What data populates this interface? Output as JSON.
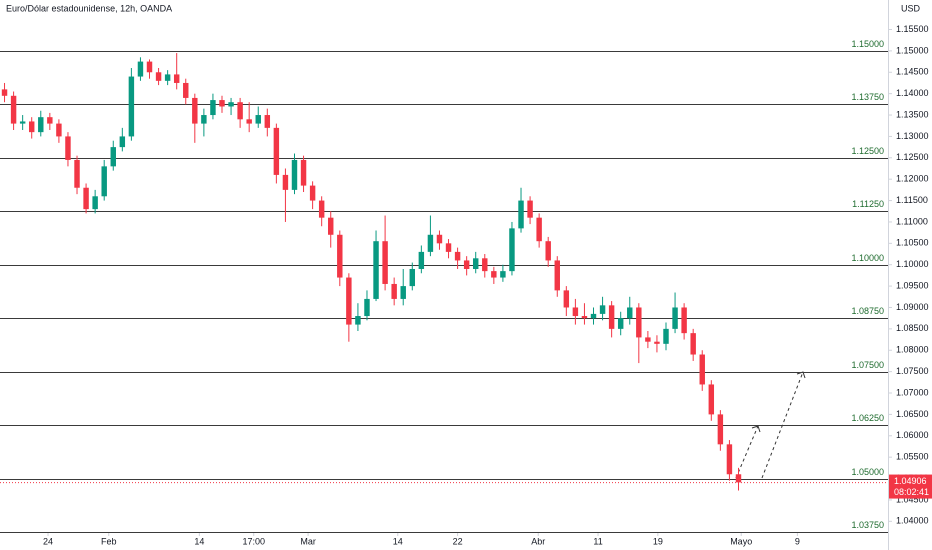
{
  "chart_data": {
    "type": "candlestick",
    "title": "Euro/Dólar estadounidense, 12h, OANDA",
    "currency": "USD",
    "up_color": "#089981",
    "down_color": "#f23645",
    "level_color": "#1e6b2e",
    "ylim": [
      1.0375,
      1.1619
    ],
    "xlim": [
      -0.5,
      97.5
    ],
    "yticks": [
      {
        "value": 1.04,
        "label": "1.04000"
      },
      {
        "value": 1.045,
        "label": "1.04500"
      },
      {
        "value": 1.05,
        "label": "1.05000"
      },
      {
        "value": 1.055,
        "label": "1.05500"
      },
      {
        "value": 1.06,
        "label": "1.06000"
      },
      {
        "value": 1.065,
        "label": "1.06500"
      },
      {
        "value": 1.07,
        "label": "1.07000"
      },
      {
        "value": 1.075,
        "label": "1.07500"
      },
      {
        "value": 1.08,
        "label": "1.08000"
      },
      {
        "value": 1.085,
        "label": "1.08500"
      },
      {
        "value": 1.09,
        "label": "1.09000"
      },
      {
        "value": 1.095,
        "label": "1.09500"
      },
      {
        "value": 1.1,
        "label": "1.10000"
      },
      {
        "value": 1.105,
        "label": "1.10500"
      },
      {
        "value": 1.11,
        "label": "1.11000"
      },
      {
        "value": 1.115,
        "label": "1.11500"
      },
      {
        "value": 1.12,
        "label": "1.12000"
      },
      {
        "value": 1.125,
        "label": "1.12500"
      },
      {
        "value": 1.13,
        "label": "1.13000"
      },
      {
        "value": 1.135,
        "label": "1.13500"
      },
      {
        "value": 1.14,
        "label": "1.14000"
      },
      {
        "value": 1.145,
        "label": "1.14500"
      },
      {
        "value": 1.15,
        "label": "1.15000"
      },
      {
        "value": 1.155,
        "label": "1.15500"
      }
    ],
    "xticks": [
      {
        "value": 4.8,
        "label": "24"
      },
      {
        "value": 11.5,
        "label": "Feb"
      },
      {
        "value": 21.5,
        "label": "14"
      },
      {
        "value": 27.5,
        "label": "17:00"
      },
      {
        "value": 33.5,
        "label": "Mar"
      },
      {
        "value": 43.4,
        "label": "14"
      },
      {
        "value": 50,
        "label": "22"
      },
      {
        "value": 58.9,
        "label": "Abr"
      },
      {
        "value": 65.5,
        "label": "11"
      },
      {
        "value": 72.1,
        "label": "19"
      },
      {
        "value": 81.3,
        "label": "Mayo"
      },
      {
        "value": 87.5,
        "label": "9"
      }
    ],
    "levels": [
      {
        "value": 1.15,
        "label": "1.15000"
      },
      {
        "value": 1.1375,
        "label": "1.13750"
      },
      {
        "value": 1.125,
        "label": "1.12500"
      },
      {
        "value": 1.1125,
        "label": "1.11250"
      },
      {
        "value": 1.1,
        "label": "1.10000"
      },
      {
        "value": 1.0875,
        "label": "1.08750"
      },
      {
        "value": 1.075,
        "label": "1.07500"
      },
      {
        "value": 1.0625,
        "label": "1.06250"
      },
      {
        "value": 1.05,
        "label": "1.05000"
      },
      {
        "value": 1.0375,
        "label": "1.03750"
      }
    ],
    "last_price": {
      "value": 1.04906,
      "label": "1.04906"
    },
    "countdown": "08:02:41",
    "open": [
      1.141,
      1.1395,
      1.133,
      1.1335,
      1.131,
      1.1345,
      1.133,
      1.13,
      1.1245,
      1.118,
      1.113,
      1.116,
      1.123,
      1.1275,
      1.13,
      1.144,
      1.1475,
      1.145,
      1.143,
      1.1445,
      1.1425,
      1.139,
      1.133,
      1.135,
      1.1385,
      1.137,
      1.138,
      1.134,
      1.133,
      1.135,
      1.132,
      1.121,
      1.1175,
      1.1245,
      1.1185,
      1.115,
      1.111,
      1.107,
      1.097,
      1.086,
      1.088,
      1.092,
      1.1055,
      1.0955,
      1.092,
      1.095,
      1.099,
      1.103,
      1.107,
      1.105,
      1.103,
      1.101,
      1.099,
      1.1015,
      1.0985,
      1.097,
      1.0985,
      1.1085,
      1.115,
      1.111,
      1.1055,
      1.101,
      1.094,
      1.09,
      1.088,
      1.0875,
      1.0885,
      1.0905,
      1.085,
      1.0875,
      1.09,
      1.083,
      1.082,
      1.0815,
      1.085,
      1.09,
      1.084,
      1.079,
      1.072,
      1.065,
      1.058,
      1.051
    ],
    "high": [
      1.1425,
      1.1405,
      1.135,
      1.1345,
      1.136,
      1.1355,
      1.134,
      1.131,
      1.1255,
      1.119,
      1.1175,
      1.1245,
      1.129,
      1.132,
      1.146,
      1.1485,
      1.148,
      1.146,
      1.1455,
      1.1495,
      1.1435,
      1.14,
      1.1365,
      1.14,
      1.1395,
      1.139,
      1.139,
      1.138,
      1.137,
      1.1365,
      1.133,
      1.1225,
      1.126,
      1.1255,
      1.1195,
      1.116,
      1.1125,
      1.108,
      1.098,
      1.091,
      1.094,
      1.108,
      1.1115,
      1.097,
      1.099,
      1.1005,
      1.1045,
      1.1115,
      1.108,
      1.106,
      1.104,
      1.102,
      1.103,
      1.1025,
      1.0995,
      1.1,
      1.11,
      1.118,
      1.116,
      1.112,
      1.1065,
      1.102,
      1.095,
      1.092,
      1.091,
      1.09,
      1.0925,
      1.0915,
      1.089,
      1.0925,
      1.091,
      1.0845,
      1.0835,
      1.0865,
      1.0935,
      1.091,
      1.085,
      1.08,
      1.073,
      1.066,
      1.059,
      1.0525
    ],
    "low": [
      1.138,
      1.1315,
      1.1315,
      1.1295,
      1.13,
      1.1315,
      1.1285,
      1.123,
      1.1165,
      1.112,
      1.112,
      1.115,
      1.122,
      1.1265,
      1.129,
      1.143,
      1.1435,
      1.142,
      1.142,
      1.141,
      1.1375,
      1.1285,
      1.13,
      1.134,
      1.1355,
      1.135,
      1.132,
      1.131,
      1.132,
      1.13,
      1.119,
      1.11,
      1.1165,
      1.117,
      1.113,
      1.109,
      1.104,
      1.095,
      1.082,
      1.0845,
      1.087,
      1.0915,
      1.094,
      1.0905,
      1.0905,
      1.094,
      1.098,
      1.102,
      1.1035,
      1.1015,
      1.099,
      1.0975,
      1.098,
      1.097,
      1.0955,
      1.096,
      1.0975,
      1.1075,
      1.1095,
      1.104,
      1.0995,
      1.0925,
      1.088,
      1.086,
      1.086,
      1.086,
      1.087,
      1.083,
      1.0835,
      1.086,
      1.077,
      1.0805,
      1.0795,
      1.08,
      1.084,
      1.0825,
      1.0775,
      1.0705,
      1.0635,
      1.0565,
      1.0495,
      1.0472
    ],
    "close": [
      1.1395,
      1.133,
      1.1335,
      1.131,
      1.1345,
      1.133,
      1.13,
      1.1245,
      1.118,
      1.113,
      1.116,
      1.123,
      1.1275,
      1.13,
      1.144,
      1.1475,
      1.145,
      1.143,
      1.1445,
      1.1425,
      1.139,
      1.133,
      1.135,
      1.1385,
      1.137,
      1.138,
      1.134,
      1.133,
      1.135,
      1.132,
      1.121,
      1.1175,
      1.1245,
      1.1185,
      1.115,
      1.111,
      1.107,
      1.097,
      1.086,
      1.088,
      1.092,
      1.1055,
      1.0955,
      1.092,
      1.095,
      1.099,
      1.103,
      1.107,
      1.105,
      1.103,
      1.101,
      1.099,
      1.1015,
      1.0985,
      1.097,
      1.0985,
      1.1085,
      1.115,
      1.111,
      1.1055,
      1.101,
      1.094,
      1.09,
      1.088,
      1.0875,
      1.0885,
      1.0905,
      1.085,
      1.0875,
      1.09,
      1.083,
      1.082,
      1.0815,
      1.085,
      1.09,
      1.084,
      1.079,
      1.072,
      1.065,
      1.058,
      1.051,
      1.0491
    ]
  }
}
